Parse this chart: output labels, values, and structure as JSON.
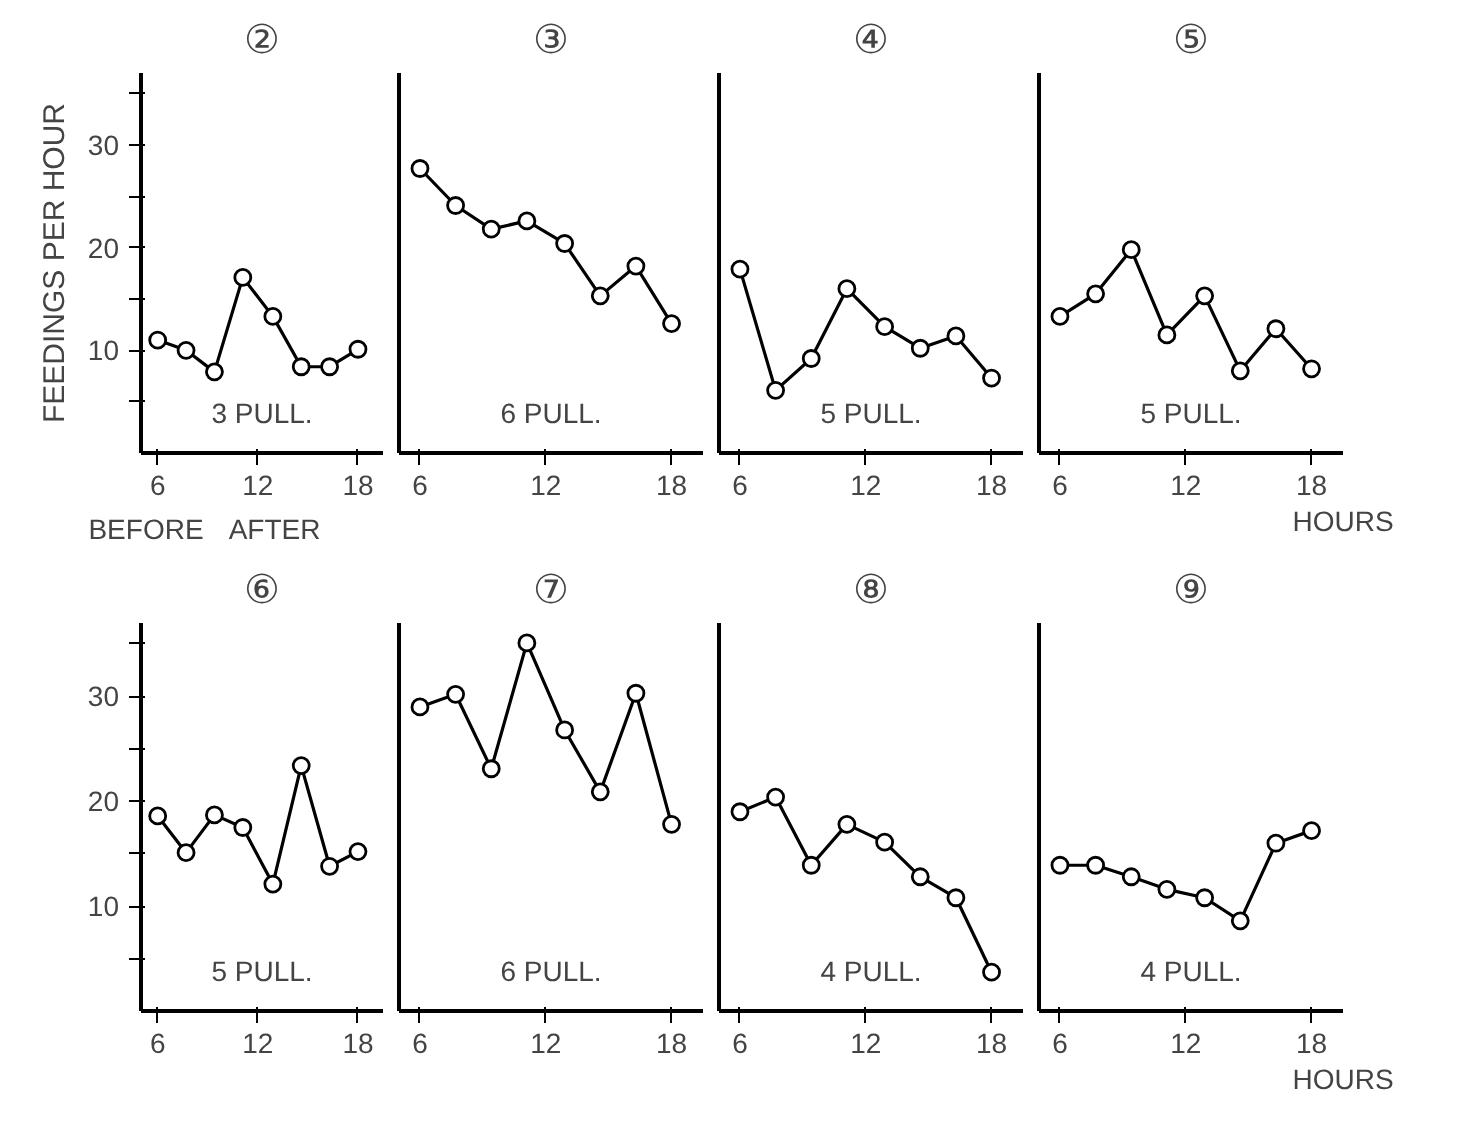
{
  "chart_data": [
    {
      "type": "line",
      "title": "②",
      "ylabel": "FEEDINGS PER HOUR",
      "x": [
        6,
        7.7,
        9.4,
        11.1,
        12.9,
        14.6,
        16.3,
        18
      ],
      "values": [
        11.0,
        10.0,
        7.9,
        17.1,
        13.3,
        8.4,
        8.4,
        10.1
      ],
      "color": "#000000",
      "xlim": [
        5,
        19.5
      ],
      "xticks": [
        6,
        12,
        18
      ],
      "ylim": [
        0,
        37
      ],
      "yticks": [
        {
          "value": 5,
          "label": null
        },
        10,
        {
          "value": 15,
          "label": null
        },
        20,
        {
          "value": 25,
          "label": null
        },
        30,
        {
          "value": 35,
          "label": null
        }
      ],
      "annotations": [
        "3 PULL.",
        "BEFORE",
        "AFTER"
      ],
      "marker": "circle",
      "grid": false
    },
    {
      "type": "line",
      "title": "③",
      "x": [
        6,
        7.7,
        9.4,
        11.1,
        12.9,
        14.6,
        16.3,
        18
      ],
      "values": [
        27.7,
        24.1,
        21.8,
        22.6,
        20.4,
        15.3,
        18.2,
        12.6
      ],
      "color": "#000000",
      "xlim": [
        5,
        19.5
      ],
      "xticks": [
        6,
        12,
        18
      ],
      "ylim": [
        0,
        37
      ],
      "annotations": [
        "6 PULL."
      ],
      "marker": "circle",
      "grid": false,
      "tick_labels": "x"
    },
    {
      "type": "line",
      "title": "④",
      "x": [
        6,
        7.7,
        9.4,
        11.1,
        12.9,
        14.6,
        16.3,
        18
      ],
      "values": [
        17.9,
        6.1,
        9.2,
        16.0,
        12.3,
        10.2,
        11.4,
        7.3
      ],
      "color": "#000000",
      "xlim": [
        5,
        19.5
      ],
      "xticks": [
        6,
        12,
        18
      ],
      "ylim": [
        0,
        37
      ],
      "annotations": [
        "5 PULL."
      ],
      "marker": "circle",
      "grid": false,
      "tick_labels": "x"
    },
    {
      "type": "line",
      "title": "⑤",
      "xlabel": "HOURS",
      "x": [
        6,
        7.7,
        9.4,
        11.1,
        12.9,
        14.6,
        16.3,
        18
      ],
      "values": [
        13.3,
        15.5,
        19.8,
        11.5,
        15.3,
        8.0,
        12.1,
        8.2
      ],
      "color": "#000000",
      "xlim": [
        5,
        19.5
      ],
      "xticks": [
        6,
        12,
        18
      ],
      "ylim": [
        0,
        37
      ],
      "annotations": [
        "5 PULL."
      ],
      "marker": "circle",
      "grid": false,
      "tick_labels": "x"
    },
    {
      "type": "line",
      "title": "⑥",
      "x": [
        6,
        7.7,
        9.4,
        11.1,
        12.9,
        14.6,
        16.3,
        18
      ],
      "values": [
        18.6,
        15.1,
        18.7,
        17.5,
        12.1,
        23.4,
        13.8,
        15.2
      ],
      "color": "#000000",
      "xlim": [
        5,
        19.5
      ],
      "xticks": [
        6,
        12,
        18
      ],
      "ylim": [
        0,
        37
      ],
      "yticks": [
        {
          "value": 5,
          "label": null
        },
        10,
        {
          "value": 15,
          "label": null
        },
        20,
        {
          "value": 25,
          "label": null
        },
        30,
        {
          "value": 35,
          "label": null
        }
      ],
      "annotations": [
        "5 PULL."
      ],
      "marker": "circle",
      "grid": false
    },
    {
      "type": "line",
      "title": "⑦",
      "x": [
        6,
        7.7,
        9.4,
        11.1,
        12.9,
        14.6,
        16.3,
        18
      ],
      "values": [
        29.0,
        30.2,
        23.1,
        35.1,
        26.8,
        20.9,
        30.3,
        17.8
      ],
      "color": "#000000",
      "xlim": [
        5,
        19.5
      ],
      "xticks": [
        6,
        12,
        18
      ],
      "ylim": [
        0,
        37
      ],
      "annotations": [
        "6 PULL."
      ],
      "marker": "circle",
      "grid": false,
      "tick_labels": "x"
    },
    {
      "type": "line",
      "title": "⑧",
      "x": [
        6,
        7.7,
        9.4,
        11.1,
        12.9,
        14.6,
        16.3,
        18
      ],
      "values": [
        19.0,
        20.4,
        13.9,
        17.8,
        16.1,
        12.8,
        10.8,
        3.7
      ],
      "color": "#000000",
      "xlim": [
        5,
        19.5
      ],
      "xticks": [
        6,
        12,
        18
      ],
      "ylim": [
        0,
        37
      ],
      "annotations": [
        "4 PULL."
      ],
      "marker": "circle",
      "grid": false,
      "tick_labels": "x"
    },
    {
      "type": "line",
      "title": "⑨",
      "xlabel": "HOURS",
      "x": [
        6,
        7.7,
        9.4,
        11.1,
        12.9,
        14.6,
        16.3,
        18
      ],
      "values": [
        13.9,
        13.9,
        12.8,
        11.6,
        10.8,
        8.6,
        16.0,
        17.2
      ],
      "color": "#000000",
      "xlim": [
        5,
        19.5
      ],
      "xticks": [
        6,
        12,
        18
      ],
      "ylim": [
        0,
        37
      ],
      "annotations": [
        "4 PULL."
      ],
      "marker": "circle",
      "grid": false,
      "tick_labels": "x"
    }
  ]
}
